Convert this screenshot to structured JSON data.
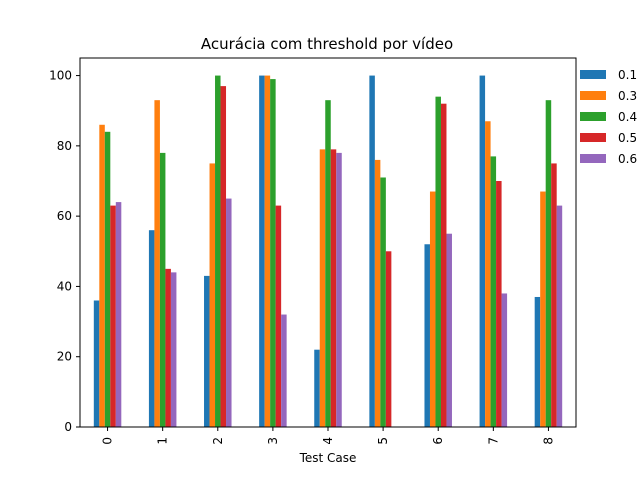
{
  "chart_data": {
    "type": "bar",
    "title": "Acurácia com threshold por vídeo",
    "xlabel": "Test Case",
    "ylabel": "",
    "categories": [
      "0",
      "1",
      "2",
      "3",
      "4",
      "5",
      "6",
      "7",
      "8"
    ],
    "ylim": [
      0,
      105
    ],
    "yticks": [
      0,
      20,
      40,
      60,
      80,
      100
    ],
    "grid": false,
    "legend_position": "right, outside plot",
    "series": [
      {
        "name": "0.1",
        "color": "#1f77b4",
        "values": [
          36,
          56,
          43,
          100,
          22,
          100,
          52,
          100,
          37
        ]
      },
      {
        "name": "0.3",
        "color": "#ff7f0e",
        "values": [
          86,
          93,
          75,
          100,
          79,
          76,
          67,
          87,
          67
        ]
      },
      {
        "name": "0.4",
        "color": "#2ca02c",
        "values": [
          84,
          78,
          100,
          99,
          93,
          71,
          94,
          77,
          93
        ]
      },
      {
        "name": "0.5",
        "color": "#d62728",
        "values": [
          63,
          45,
          97,
          63,
          79,
          50,
          92,
          70,
          75
        ]
      },
      {
        "name": "0.6",
        "color": "#9467bd",
        "values": [
          64,
          44,
          65,
          32,
          78,
          0,
          55,
          38,
          63
        ]
      }
    ]
  }
}
